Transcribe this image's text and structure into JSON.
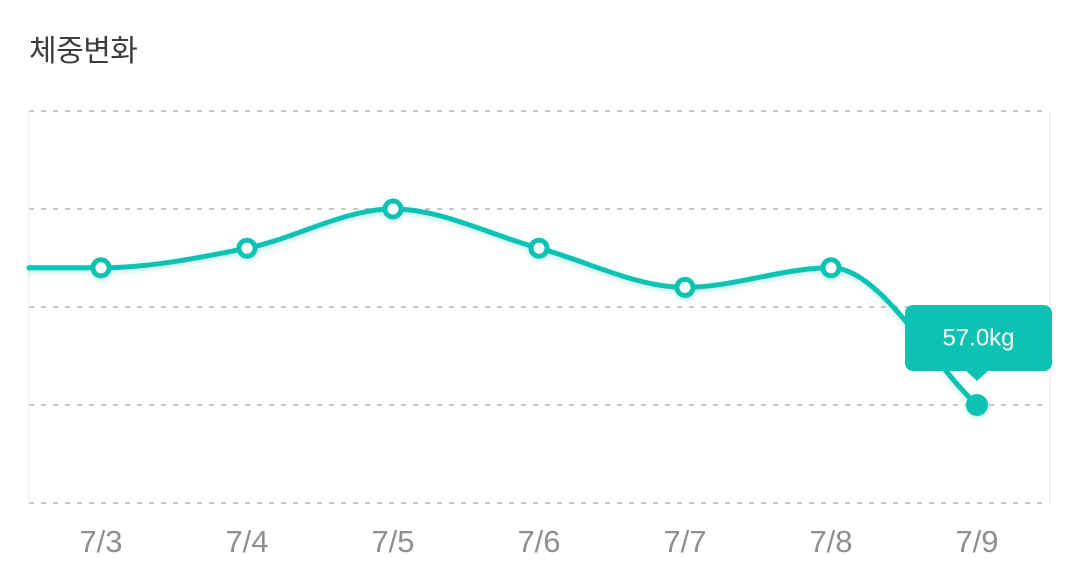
{
  "page": {
    "title": "체중변화"
  },
  "colors": {
    "accent_teal": "#0CC2B2",
    "gridline": "#C8C8C8",
    "plot_border": "#EDEDED",
    "axis_label": "#8F8F8F",
    "title_text": "#3D3D3D",
    "tooltip_bg": "#0CC2B2",
    "tooltip_text": "#FFFFFF",
    "marker_fill": "#FFFFFF"
  },
  "tooltip": {
    "label": "57.0kg",
    "attached_category": "7/9"
  },
  "chart_data": {
    "type": "line",
    "title": "체중변화",
    "categories": [
      "7/3",
      "7/4",
      "7/5",
      "7/6",
      "7/7",
      "7/8",
      "7/9"
    ],
    "values_kg": [
      57.7,
      57.8,
      58.0,
      57.8,
      57.6,
      57.7,
      57.0
    ],
    "labeled_points": {
      "7/9": "57.0kg"
    },
    "ylabel": "",
    "xlabel": "",
    "ylim": [
      56.5,
      58.5
    ],
    "gridline_step_kg": 0.5,
    "grid": "dashed-horizontal",
    "legend": "none",
    "markers": {
      "default": "open-circle",
      "selected_last": "filled-circle"
    },
    "note": "only the 7/9 point is labeled on screen (57.0kg); other values estimated from unlabeled gridlines"
  }
}
